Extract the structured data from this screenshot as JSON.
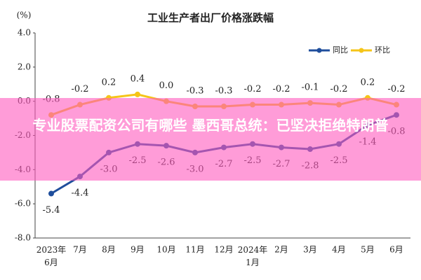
{
  "chart_data": {
    "type": "line",
    "title": "工业生产者出厂价格涨跌幅",
    "y_label": "(%)",
    "categories": [
      "2023年\n6月",
      "7月",
      "8月",
      "9月",
      "10月",
      "11月",
      "12月",
      "2024年\n1月",
      "2月",
      "3月",
      "4月",
      "5月",
      "6月"
    ],
    "series": [
      {
        "name": "同比",
        "color": "#1f4e9c",
        "values": [
          -5.4,
          -4.4,
          -3.0,
          -2.5,
          -2.6,
          -3.0,
          -2.7,
          -2.5,
          -2.7,
          -2.8,
          -2.5,
          -1.4,
          -0.8
        ],
        "value_labels": [
          "-5.4",
          "-4.4",
          "-3.0",
          "-2.5",
          "-2.6",
          "-3.0",
          "-2.7",
          "-2.5",
          "-2.7",
          "-2.8",
          "-2.5",
          "-1.4",
          "-0.8"
        ]
      },
      {
        "name": "环比",
        "color": "#f5c518",
        "values": [
          -0.8,
          -0.2,
          0.2,
          0.4,
          0.0,
          -0.3,
          -0.3,
          -0.2,
          -0.2,
          -0.1,
          -0.2,
          0.2,
          -0.2
        ],
        "value_labels": [
          "-0.8",
          "-0.2",
          "0.2",
          "0.4",
          "0.0",
          "-0.3",
          "-0.3",
          "-0.2",
          "-0.2",
          "-0.1",
          "-0.2",
          "0.2",
          "-0.2"
        ]
      }
    ],
    "ylim": [
      -8,
      4
    ],
    "yticks": [
      {
        "value": -8,
        "label": "-8.0"
      },
      {
        "value": -6,
        "label": "-6.0"
      },
      {
        "value": -4,
        "label": "-4.0"
      },
      {
        "value": -2,
        "label": "-2.0"
      },
      {
        "value": 0,
        "label": "0.0"
      },
      {
        "value": 2,
        "label": "2.0"
      },
      {
        "value": 4,
        "label": "4.0"
      }
    ],
    "grid": false,
    "legend": "top-right"
  },
  "banner": {
    "text": "专业股票配资公司有哪些 墨西哥总统：已坚决拒绝特朗普"
  }
}
